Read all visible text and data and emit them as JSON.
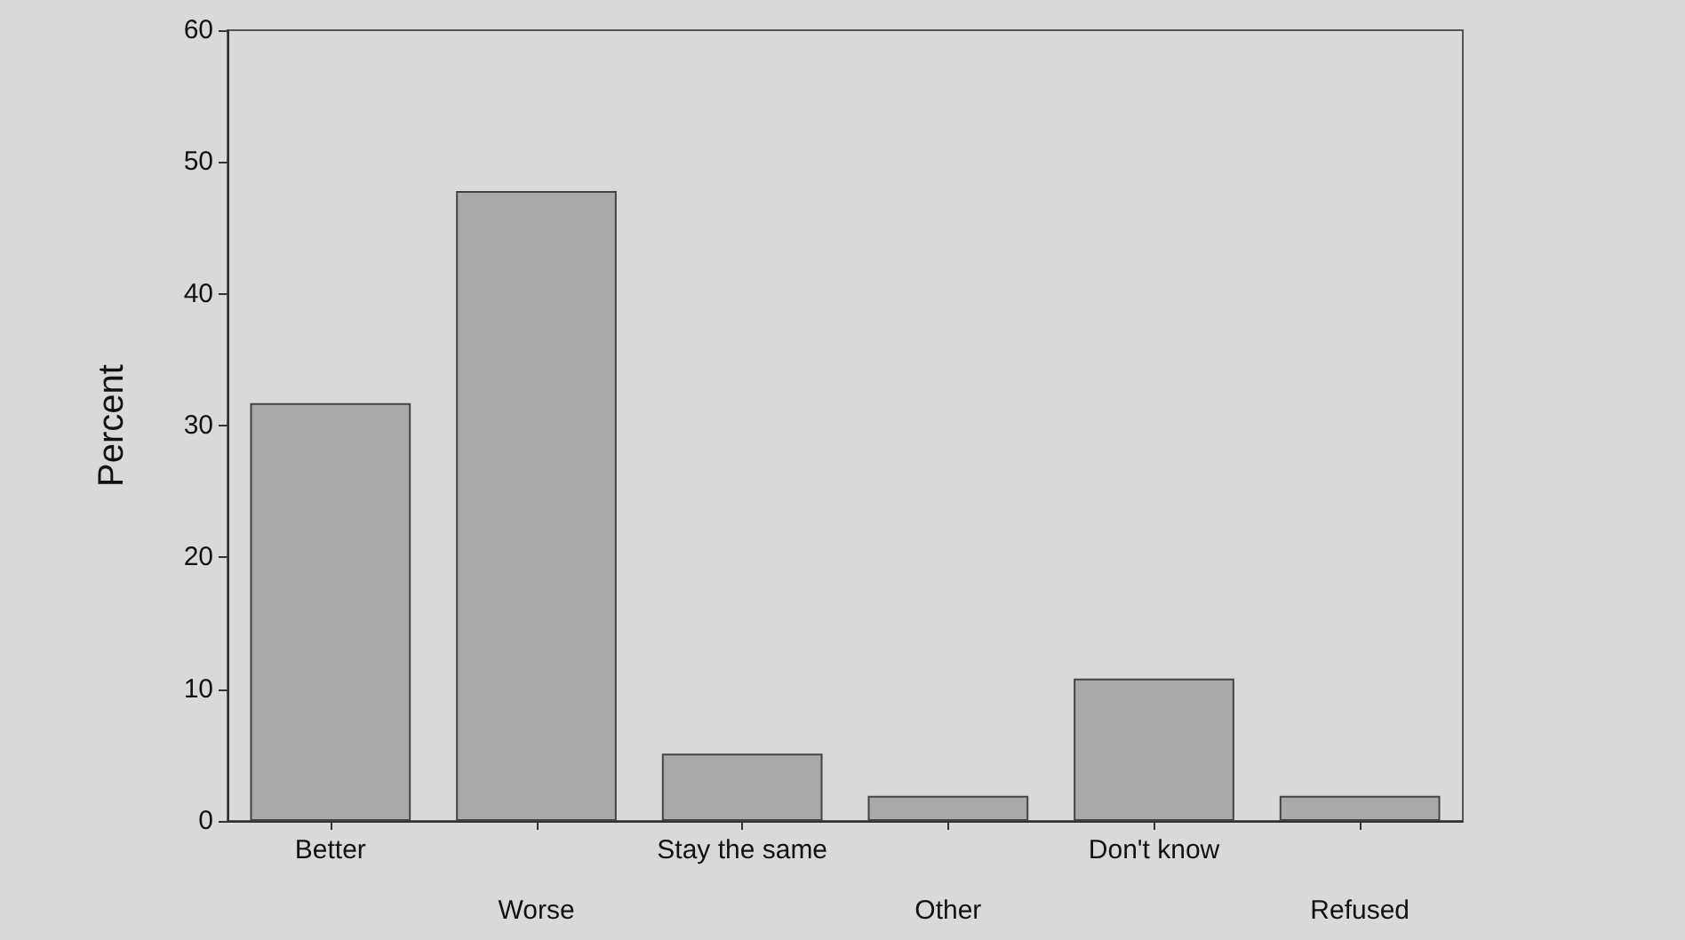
{
  "chart_data": {
    "type": "bar",
    "ylabel": "Percent",
    "categories": [
      "Better",
      "Worse",
      "Stay the same",
      "Other",
      "Don't know",
      "Refused"
    ],
    "values": [
      31.7,
      47.8,
      5.1,
      1.9,
      10.8,
      1.9
    ],
    "color": "#a9a9a9",
    "ylim": [
      0,
      60
    ],
    "yticks": [
      0,
      10,
      20,
      30,
      40,
      50,
      60
    ],
    "grid": false
  }
}
